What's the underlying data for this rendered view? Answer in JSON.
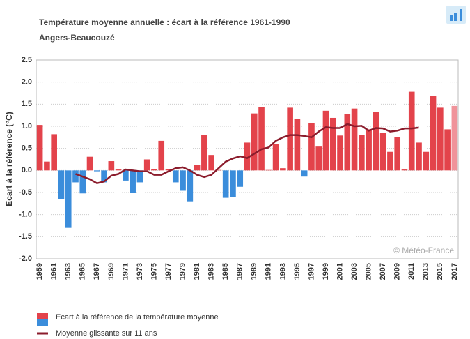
{
  "chart_data": {
    "type": "bar",
    "title": "Température moyenne annuelle : écart à la référence 1961-1990",
    "subtitle": "Angers-Beaucouzé",
    "y_label": "Ecart à la référence (°C)",
    "watermark": "© Météo-France",
    "categories": [
      "1959",
      null,
      "1961",
      null,
      "1963",
      null,
      "1965",
      null,
      "1967",
      null,
      "1969",
      null,
      "1971",
      null,
      "1973",
      null,
      "1975",
      null,
      "1977",
      null,
      "1979",
      null,
      "1981",
      null,
      "1983",
      null,
      "1985",
      null,
      "1987",
      null,
      "1989",
      null,
      "1991",
      null,
      "1993",
      null,
      "1995",
      null,
      "1997",
      null,
      "1999",
      null,
      "2001",
      null,
      "2003",
      null,
      "2005",
      null,
      "2007",
      null,
      "2009",
      null,
      "2011",
      null,
      "2013",
      null,
      "2015",
      null,
      "2017"
    ],
    "series": [
      {
        "name": "Ecart à la référence de la température moyenne",
        "type": "bar",
        "values": [
          1.03,
          0.2,
          0.82,
          -0.65,
          -1.3,
          -0.27,
          -0.52,
          0.31,
          -0.02,
          -0.27,
          0.21,
          0.02,
          -0.23,
          -0.5,
          -0.27,
          0.25,
          0.03,
          0.67,
          0.03,
          -0.27,
          -0.46,
          -0.7,
          0.12,
          0.8,
          0.35,
          0.01,
          -0.62,
          -0.6,
          -0.37,
          0.63,
          1.29,
          1.44,
          0.01,
          0.6,
          0.05,
          1.42,
          1.16,
          -0.14,
          1.07,
          0.54,
          1.35,
          1.19,
          0.79,
          1.27,
          1.4,
          0.8,
          0.93,
          1.33,
          0.85,
          0.42,
          0.75,
          0.02,
          1.78,
          0.63,
          0.42,
          1.68,
          1.42,
          0.93,
          1.46
        ],
        "colors": [
          "#e3434b",
          "#e3434b",
          "#e3434b",
          "#3b8ddb",
          "#3b8ddb",
          "#3b8ddb",
          "#3b8ddb",
          "#e3434b",
          "#3b8ddb",
          "#3b8ddb",
          "#e3434b",
          "#e3434b",
          "#3b8ddb",
          "#3b8ddb",
          "#3b8ddb",
          "#e3434b",
          "#e3434b",
          "#e3434b",
          "#e3434b",
          "#3b8ddb",
          "#3b8ddb",
          "#3b8ddb",
          "#e3434b",
          "#e3434b",
          "#e3434b",
          "#e3434b",
          "#3b8ddb",
          "#3b8ddb",
          "#3b8ddb",
          "#e3434b",
          "#e3434b",
          "#e3434b",
          "#e3434b",
          "#e3434b",
          "#e3434b",
          "#e3434b",
          "#e3434b",
          "#3b8ddb",
          "#e3434b",
          "#e3434b",
          "#e3434b",
          "#e3434b",
          "#e3434b",
          "#e3434b",
          "#e3434b",
          "#e3434b",
          "#e3434b",
          "#e3434b",
          "#e3434b",
          "#e3434b",
          "#e3434b",
          "#e3434b",
          "#e3434b",
          "#e3434b",
          "#e3434b",
          "#e3434b",
          "#e3434b",
          "#e3434b",
          "#f0939a"
        ]
      },
      {
        "name": "Moyenne glissante sur 11 ans",
        "type": "line",
        "color": "#8b1c2c",
        "values": [
          null,
          null,
          null,
          null,
          null,
          -0.08,
          -0.14,
          -0.2,
          -0.29,
          -0.25,
          -0.12,
          -0.08,
          0.02,
          0.0,
          -0.02,
          -0.02,
          -0.1,
          -0.1,
          -0.02,
          0.05,
          0.07,
          0.0,
          -0.1,
          -0.15,
          -0.1,
          0.05,
          0.2,
          0.27,
          0.32,
          0.28,
          0.38,
          0.48,
          0.52,
          0.67,
          0.75,
          0.8,
          0.8,
          0.78,
          0.75,
          0.88,
          0.98,
          0.96,
          0.96,
          1.05,
          1.0,
          1.01,
          0.9,
          0.96,
          0.95,
          0.88,
          0.9,
          0.95,
          0.95,
          0.97,
          null,
          null,
          null,
          null,
          null
        ]
      }
    ],
    "ylim": [
      -2.0,
      2.5
    ],
    "yticks": [
      2.5,
      {
        "value": 2,
        "label": "2.0"
      },
      1.5,
      {
        "value": 1,
        "label": "1.0"
      },
      0.5,
      {
        "value": 0,
        "label": "0.0"
      },
      -0.5,
      {
        "value": -1,
        "label": "-1.0"
      },
      -1.5,
      {
        "value": -2,
        "label": "-2.0"
      }
    ],
    "grid": true
  }
}
